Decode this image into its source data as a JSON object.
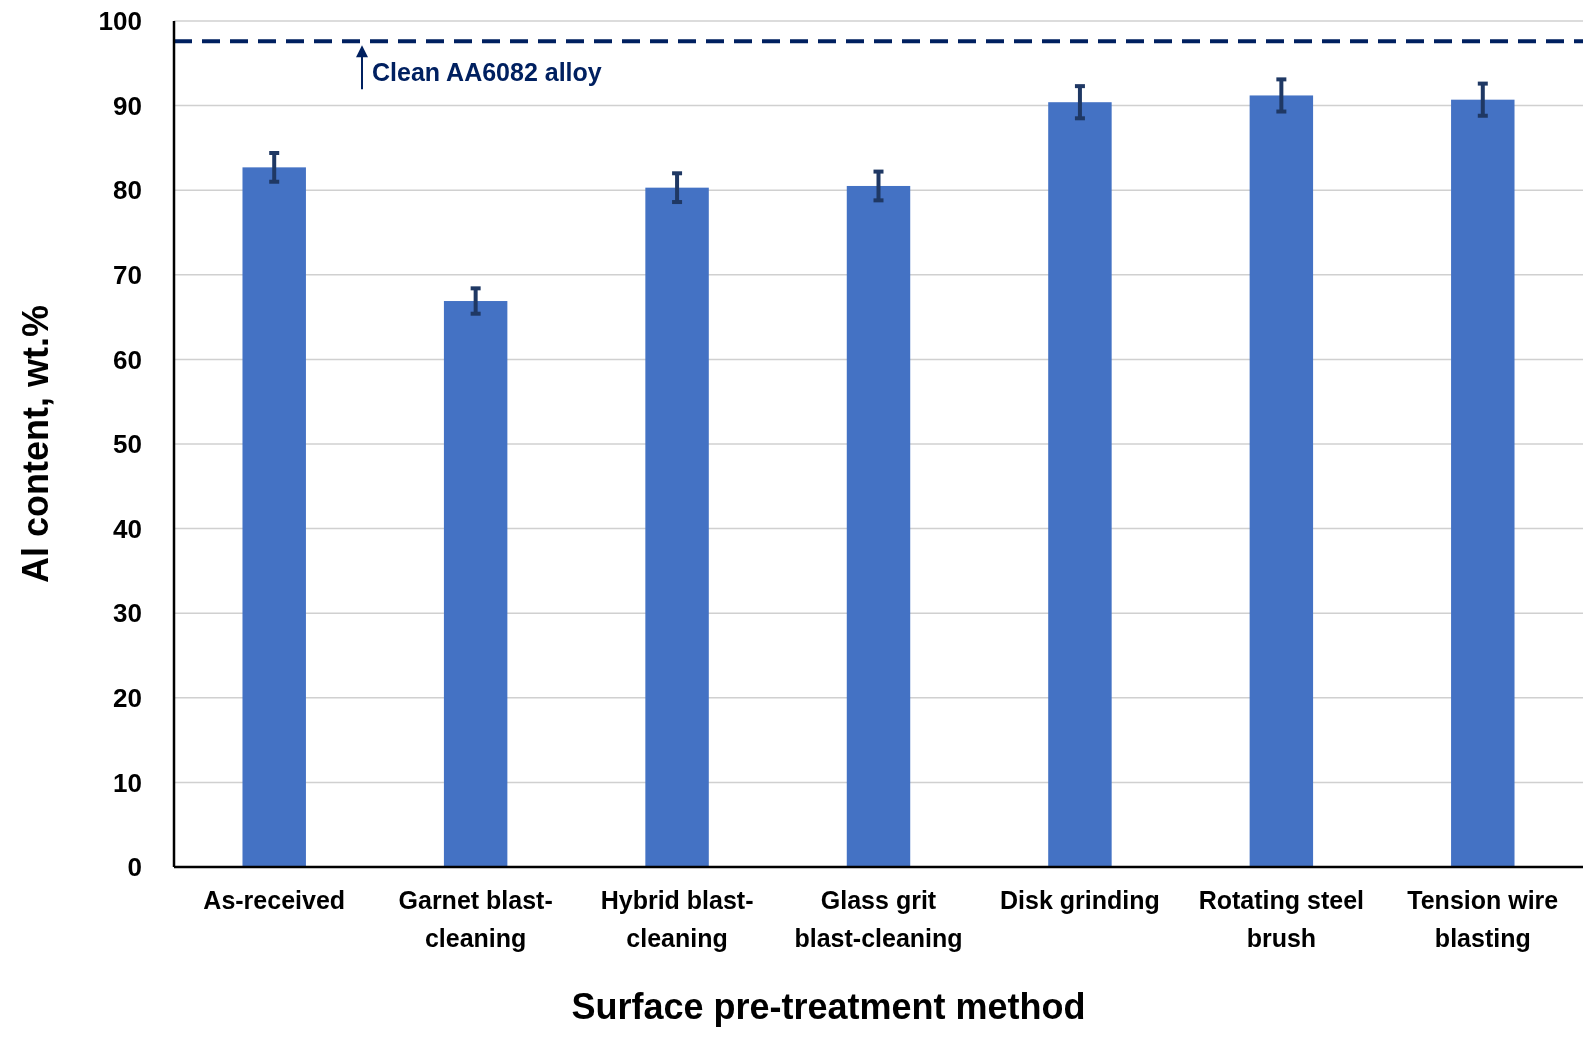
{
  "chart_data": {
    "type": "bar",
    "xlabel": "Surface pre-treatment method",
    "ylabel": "Al content, wt.%",
    "categories": [
      "As-received",
      "Garnet blast-\ncleaning",
      "Hybrid blast-\ncleaning",
      "Glass grit\nblast-cleaning",
      "Disk grinding",
      "Rotating steel\nbrush",
      "Tension wire\nblasting"
    ],
    "values": [
      82.7,
      66.9,
      80.3,
      80.5,
      90.4,
      91.2,
      90.7
    ],
    "errors": [
      1.7,
      1.5,
      1.7,
      1.7,
      1.9,
      1.9,
      1.9
    ],
    "color": "#4472c4",
    "ylim": [
      0,
      100
    ],
    "yticks": [
      0,
      10,
      20,
      30,
      40,
      50,
      60,
      70,
      80,
      90,
      100
    ],
    "grid": "y",
    "ref_lines": [
      {
        "axis": "y",
        "value": 97.6,
        "label": "Clean AA6082 alloy",
        "color": "#002060",
        "line_style": "dashed"
      }
    ]
  }
}
